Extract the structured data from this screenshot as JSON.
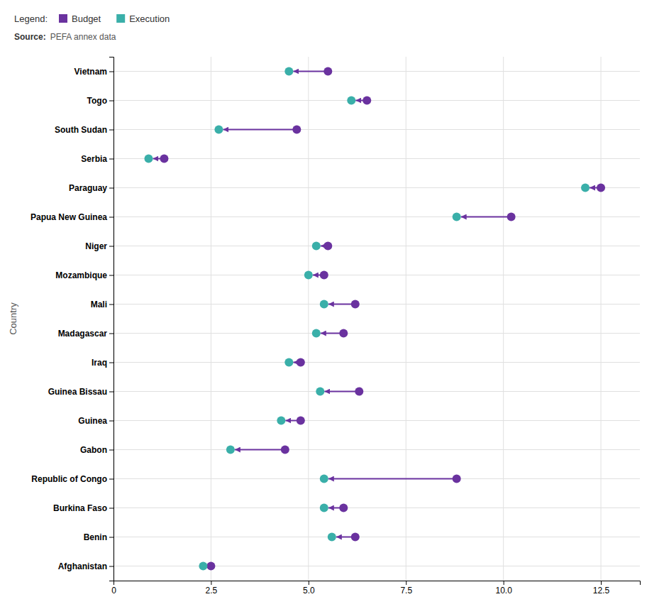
{
  "chart_data": {
    "type": "dumbbell",
    "orientation": "horizontal",
    "annotations": [
      "Legend:",
      "Source:",
      "PEFA annex data"
    ],
    "y_label": "Country",
    "categories": [
      "Vietnam",
      "Togo",
      "South Sudan",
      "Serbia",
      "Paraguay",
      "Papua New Guinea",
      "Niger",
      "Mozambique",
      "Mali",
      "Madagascar",
      "Iraq",
      "Guinea Bissau",
      "Guinea",
      "Gabon",
      "Republic of Congo",
      "Burkina Faso",
      "Benin",
      "Afghanistan"
    ],
    "series": [
      {
        "name": "Budget",
        "color": "#6a329f",
        "values": [
          5.5,
          6.5,
          4.7,
          1.3,
          12.5,
          10.2,
          5.5,
          5.4,
          6.2,
          5.9,
          4.8,
          6.3,
          4.8,
          4.4,
          8.8,
          5.9,
          6.2,
          2.5
        ]
      },
      {
        "name": "Execution",
        "color": "#3aafa9",
        "values": [
          4.5,
          6.1,
          2.7,
          0.9,
          12.1,
          8.8,
          5.2,
          5.0,
          5.4,
          5.2,
          4.5,
          5.3,
          4.3,
          3.0,
          5.4,
          5.4,
          5.6,
          2.3
        ]
      }
    ],
    "xlim": [
      0,
      13.5
    ],
    "xticks": [
      0,
      2.5,
      {
        "value": 5,
        "label": "5.0"
      },
      7.5,
      {
        "value": 10,
        "label": "10.0"
      },
      12.5
    ],
    "grid": true,
    "legend": "top"
  }
}
